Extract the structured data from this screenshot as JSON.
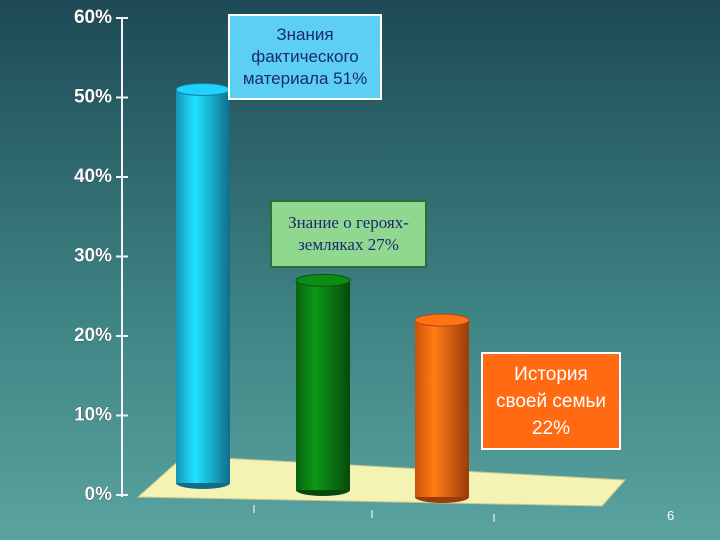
{
  "chart_data": {
    "type": "bar",
    "categories": [
      "Знания фактического материала",
      "Знание о героях-земляках",
      "История своей семьи"
    ],
    "values": [
      51,
      27,
      22
    ],
    "value_labels": [
      "51%",
      "27%",
      "22%"
    ],
    "colors": [
      "#1ab6e6",
      "#0b7a12",
      "#ff6410"
    ],
    "ylim": [
      0,
      60
    ],
    "yticks": [
      {
        "value": 0,
        "label": "0%"
      },
      {
        "value": 10,
        "label": "10%"
      },
      {
        "value": 20,
        "label": "20%"
      },
      {
        "value": 30,
        "label": "30%"
      },
      {
        "value": 40,
        "label": "40%"
      },
      {
        "value": 50,
        "label": "50%"
      },
      {
        "value": 60,
        "label": "60%"
      }
    ]
  },
  "slide": {
    "page_number": "6"
  }
}
